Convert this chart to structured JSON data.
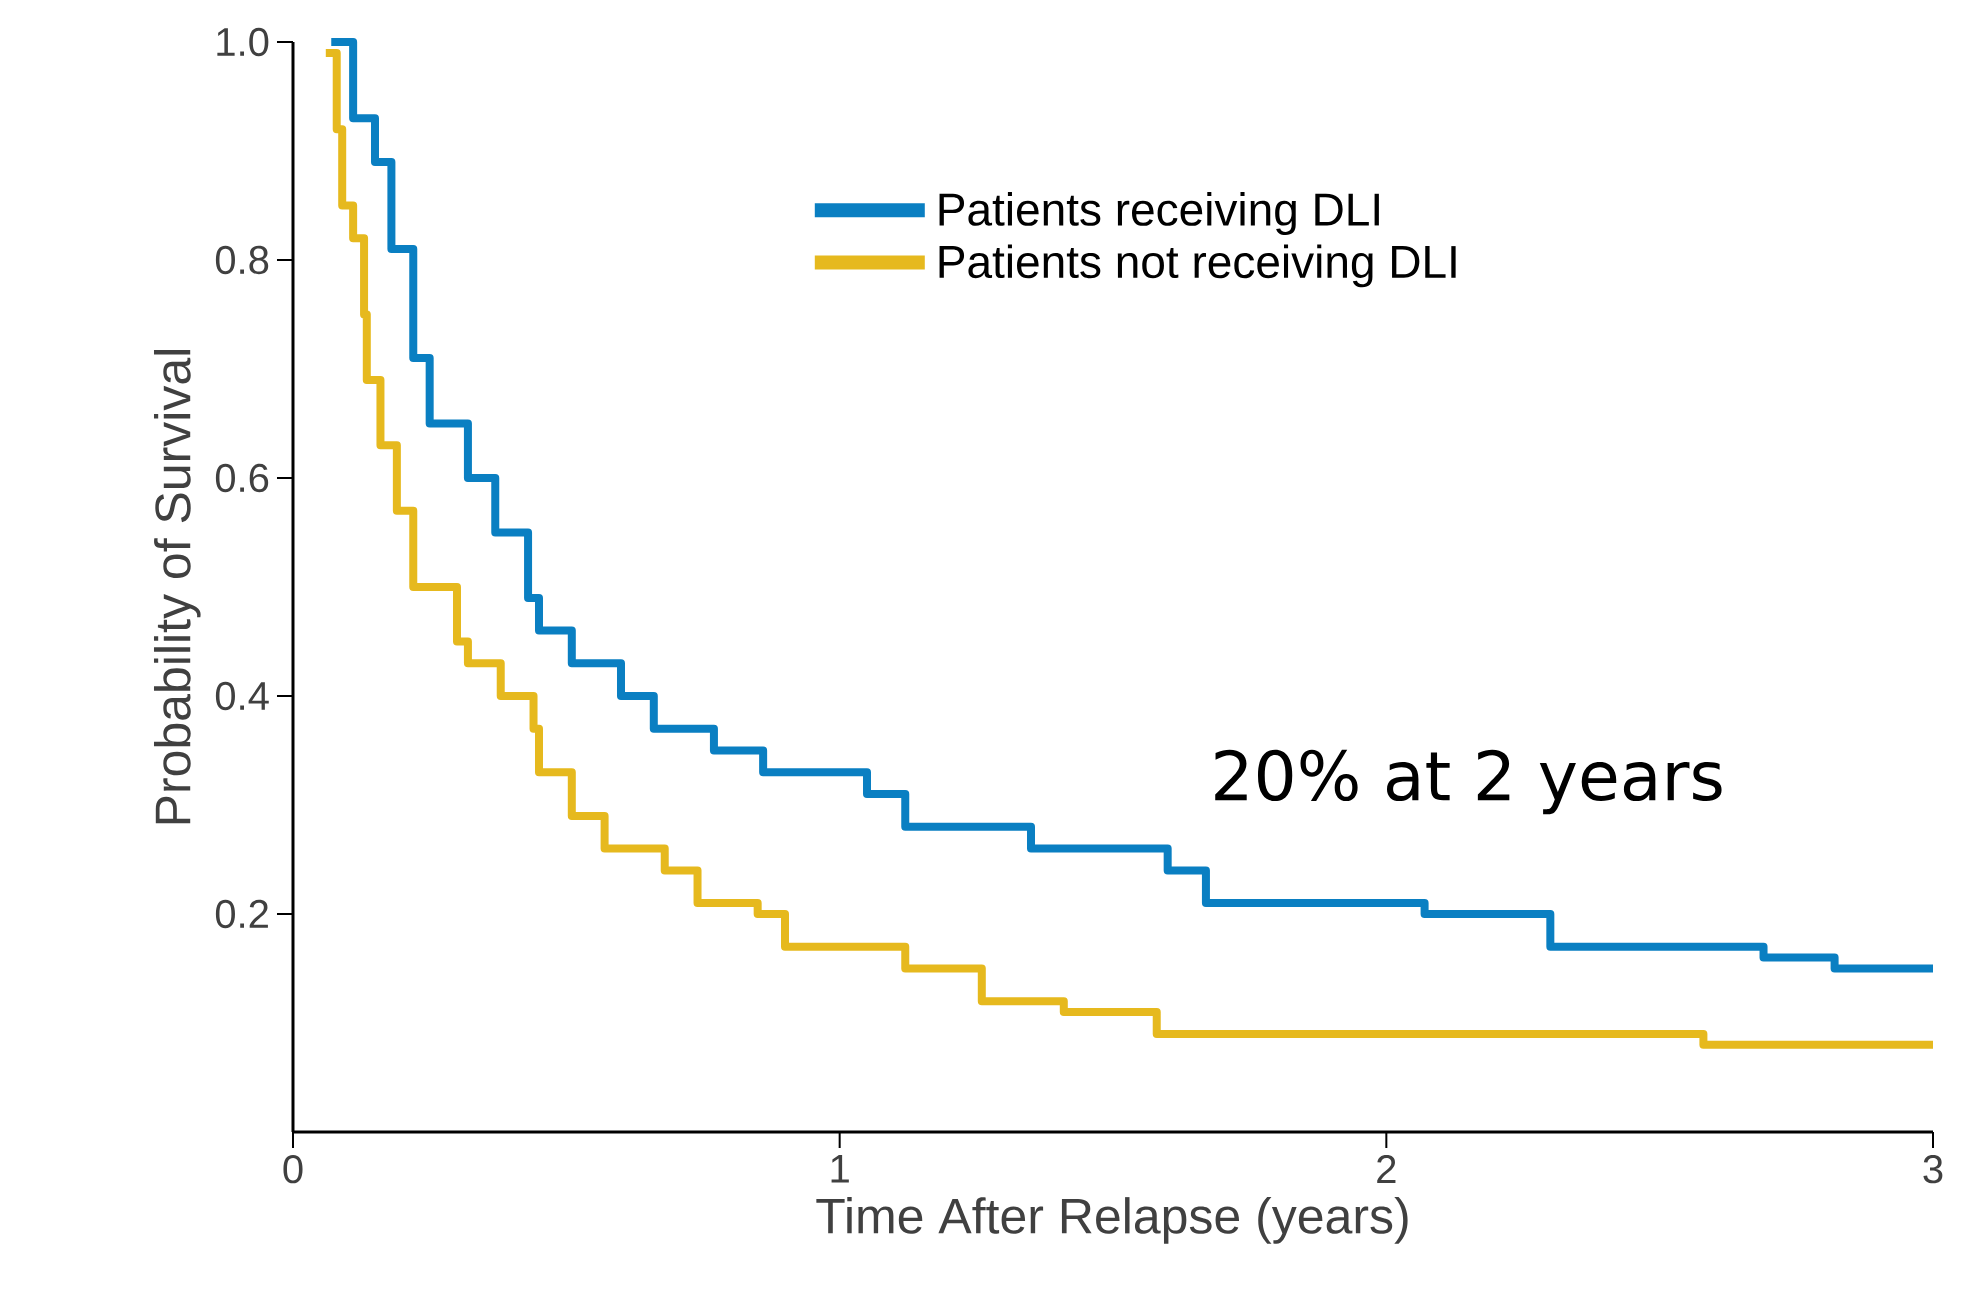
{
  "chart_data": {
    "type": "step",
    "xlabel": "Time After Relapse (years)",
    "ylabel": "Probability of Survival",
    "xlim": [
      0,
      3
    ],
    "ylim": [
      0,
      1
    ],
    "xticks": [
      0,
      1,
      2,
      3
    ],
    "yticks": [
      {
        "value": 0.2,
        "label": "0.2"
      },
      {
        "value": 0.4,
        "label": "0.4"
      },
      {
        "value": 0.6,
        "label": "0.6"
      },
      {
        "value": 0.8,
        "label": "0.8"
      },
      {
        "value": 1,
        "label": "1.0"
      }
    ],
    "legend": "top right",
    "grid": false,
    "annotations": [
      "20% at 2 years"
    ],
    "series": [
      {
        "name": "Patients receiving DLI",
        "color": "#0a7fc2",
        "x": [
          0.07,
          0.11,
          0.15,
          0.18,
          0.22,
          0.25,
          0.32,
          0.37,
          0.43,
          0.45,
          0.51,
          0.6,
          0.66,
          0.77,
          0.86,
          1.05,
          1.12,
          1.35,
          1.6,
          1.67,
          2.07,
          2.3,
          2.69,
          2.82,
          3.0
        ],
        "values": [
          1.0,
          0.93,
          0.89,
          0.81,
          0.71,
          0.65,
          0.6,
          0.55,
          0.49,
          0.46,
          0.43,
          0.4,
          0.37,
          0.35,
          0.33,
          0.31,
          0.28,
          0.26,
          0.24,
          0.21,
          0.2,
          0.17,
          0.16,
          0.15,
          0.15
        ]
      },
      {
        "name": "Patients not receiving DLI",
        "color": "#e6b91e",
        "x": [
          0.06,
          0.08,
          0.09,
          0.11,
          0.13,
          0.135,
          0.16,
          0.19,
          0.22,
          0.3,
          0.32,
          0.38,
          0.44,
          0.45,
          0.51,
          0.57,
          0.68,
          0.74,
          0.85,
          0.9,
          1.12,
          1.26,
          1.41,
          1.58,
          2.41,
          2.58,
          3.0
        ],
        "values": [
          0.99,
          0.92,
          0.85,
          0.82,
          0.75,
          0.69,
          0.63,
          0.57,
          0.5,
          0.45,
          0.43,
          0.4,
          0.37,
          0.33,
          0.29,
          0.26,
          0.24,
          0.21,
          0.2,
          0.17,
          0.15,
          0.12,
          0.11,
          0.09,
          0.09,
          0.08,
          0.08
        ]
      }
    ]
  }
}
